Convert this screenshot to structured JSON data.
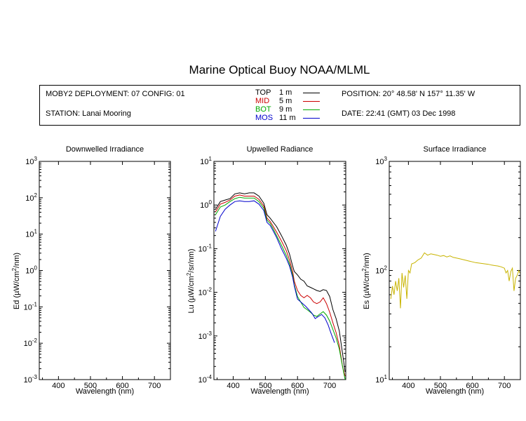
{
  "title": "Marine Optical Buoy NOAA/MLML",
  "info": {
    "deployment": "MOBY2 DEPLOYMENT: 07 CONFIG: 01",
    "station": "STATION: Lanai Mooring",
    "position": "POSITION: 20° 48.58' N   157° 11.35' W",
    "date": "DATE: 22:41 (GMT) 03 Dec 1998"
  },
  "legend": [
    {
      "name": "TOP",
      "depth": "1  m",
      "color": "#000000"
    },
    {
      "name": "MID",
      "depth": "5  m",
      "color": "#cc0000"
    },
    {
      "name": "BOT",
      "depth": "9  m",
      "color": "#00aa00"
    },
    {
      "name": "MOS",
      "depth": "11  m",
      "color": "#0000cc"
    }
  ],
  "chart_data": [
    {
      "type": "line",
      "title": "Downwelled Irradiance",
      "xlabel": "Wavelength (nm)",
      "ylabel_main": "Ed  (µW/cm",
      "ylabel_sup": "2",
      "ylabel_end": "/nm)",
      "xlim": [
        340,
        750
      ],
      "ylim_log10": [
        -3,
        3
      ],
      "log_y": true,
      "x_ticks": [
        "400",
        "500",
        "600",
        "700"
      ],
      "y_ticks": [
        {
          "base": "10",
          "exp": "-3"
        },
        {
          "base": "10",
          "exp": "-2"
        },
        {
          "base": "10",
          "exp": "-1"
        },
        {
          "base": "10",
          "exp": "0"
        },
        {
          "base": "10",
          "exp": "1"
        },
        {
          "base": "10",
          "exp": "2"
        },
        {
          "base": "10",
          "exp": "3"
        }
      ],
      "series": []
    },
    {
      "type": "line",
      "title": "Upwelled Radiance",
      "xlabel": "Wavelength (nm)",
      "ylabel_main": "Lu  (µW/cm",
      "ylabel_sup": "2",
      "ylabel_end": "/sr/nm)",
      "xlim": [
        340,
        750
      ],
      "ylim_log10": [
        -4,
        1
      ],
      "log_y": true,
      "x_ticks": [
        "400",
        "500",
        "600",
        "700"
      ],
      "y_ticks": [
        {
          "base": "10",
          "exp": "-4"
        },
        {
          "base": "10",
          "exp": "-3"
        },
        {
          "base": "10",
          "exp": "-2"
        },
        {
          "base": "10",
          "exp": "-1"
        },
        {
          "base": "10",
          "exp": "0"
        },
        {
          "base": "10",
          "exp": "1"
        }
      ],
      "series": [
        {
          "color": "#000000",
          "x": [
            345,
            360,
            375,
            390,
            405,
            420,
            435,
            450,
            465,
            480,
            495,
            505,
            515,
            525,
            535,
            550,
            565,
            575,
            585,
            590,
            600,
            610,
            620,
            630,
            640,
            650,
            660,
            670,
            680,
            690,
            700,
            710,
            720,
            730,
            740,
            748
          ],
          "y": [
            0.8,
            1.2,
            1.3,
            1.4,
            1.8,
            1.9,
            1.8,
            1.9,
            1.9,
            1.6,
            1.1,
            0.6,
            0.5,
            0.4,
            0.32,
            0.2,
            0.12,
            0.075,
            0.04,
            0.03,
            0.025,
            0.02,
            0.018,
            0.014,
            0.013,
            0.012,
            0.011,
            0.0105,
            0.0115,
            0.011,
            0.008,
            0.004,
            0.0025,
            0.0013,
            0.0004,
            0.00015
          ]
        },
        {
          "color": "#cc0000",
          "x": [
            345,
            360,
            375,
            390,
            405,
            420,
            435,
            450,
            465,
            480,
            495,
            505,
            515,
            525,
            535,
            550,
            565,
            575,
            585,
            590,
            600,
            610,
            620,
            630,
            640,
            650,
            660,
            670,
            680,
            690,
            700,
            710,
            720,
            730,
            740,
            748
          ],
          "y": [
            0.7,
            1.05,
            1.15,
            1.3,
            1.6,
            1.7,
            1.6,
            1.6,
            1.6,
            1.35,
            0.95,
            0.5,
            0.42,
            0.32,
            0.24,
            0.15,
            0.09,
            0.055,
            0.03,
            0.018,
            0.011,
            0.0085,
            0.0075,
            0.0085,
            0.0075,
            0.006,
            0.0055,
            0.006,
            0.0075,
            0.0055,
            0.0035,
            0.002,
            0.0012,
            0.0006,
            0.0002,
            0.00012
          ]
        },
        {
          "color": "#00aa00",
          "x": [
            345,
            360,
            375,
            390,
            405,
            420,
            435,
            450,
            465,
            480,
            495,
            505,
            515,
            525,
            535,
            550,
            565,
            575,
            585,
            590,
            600,
            610,
            620,
            630,
            640,
            650,
            660,
            670,
            680,
            690,
            700,
            710,
            720,
            730,
            740,
            748
          ],
          "y": [
            0.6,
            0.9,
            1.0,
            1.2,
            1.4,
            1.5,
            1.45,
            1.45,
            1.45,
            1.2,
            0.85,
            0.45,
            0.38,
            0.28,
            0.2,
            0.12,
            0.07,
            0.045,
            0.025,
            0.015,
            0.008,
            0.006,
            0.0045,
            0.004,
            0.0035,
            0.003,
            0.0028,
            0.0032,
            0.0036,
            0.003,
            0.0022,
            0.0014,
            0.0009,
            0.0005,
            0.0002,
            0.0001
          ]
        },
        {
          "color": "#0000cc",
          "x": [
            345,
            360,
            375,
            390,
            405,
            420,
            435,
            450,
            465,
            480,
            495,
            505,
            515,
            525,
            535,
            550,
            565,
            575,
            585,
            590,
            600,
            625,
            635,
            645,
            655,
            665,
            675,
            685,
            695,
            705,
            715
          ],
          "y": [
            0.25,
            0.55,
            0.8,
            1.0,
            1.2,
            1.25,
            1.2,
            1.2,
            1.25,
            1.05,
            0.75,
            0.4,
            0.34,
            0.25,
            0.18,
            0.1,
            0.06,
            0.04,
            0.022,
            0.014,
            0.007,
            0.0048,
            0.004,
            0.0033,
            0.0025,
            0.0028,
            0.0031,
            0.0026,
            0.0018,
            0.0011,
            0.0007
          ]
        }
      ]
    },
    {
      "type": "line",
      "title": "Surface Irradiance",
      "xlabel": "Wavelength (nm)",
      "ylabel_main": "Es  (µW/cm",
      "ylabel_sup": "2",
      "ylabel_end": "/nm)",
      "xlim": [
        340,
        750
      ],
      "ylim_log10": [
        1,
        3
      ],
      "log_y": true,
      "x_ticks": [
        "400",
        "500",
        "600",
        "700"
      ],
      "y_ticks": [
        {
          "base": "10",
          "exp": "1"
        },
        {
          "base": "10",
          "exp": "2"
        },
        {
          "base": "10",
          "exp": "3"
        }
      ],
      "series": [
        {
          "color": "#c8b400",
          "x": [
            345,
            350,
            355,
            360,
            365,
            370,
            375,
            380,
            385,
            390,
            395,
            400,
            405,
            410,
            420,
            430,
            440,
            450,
            460,
            470,
            480,
            490,
            500,
            510,
            520,
            530,
            540,
            550,
            560,
            570,
            580,
            590,
            600,
            610,
            620,
            630,
            640,
            650,
            660,
            670,
            680,
            690,
            700,
            705,
            710,
            715,
            720,
            725,
            730,
            735,
            740,
            745,
            748
          ],
          "y": [
            55,
            72,
            60,
            80,
            65,
            85,
            45,
            95,
            70,
            90,
            55,
            100,
            95,
            115,
            118,
            125,
            130,
            145,
            138,
            142,
            140,
            138,
            135,
            137,
            133,
            136,
            132,
            130,
            128,
            126,
            124,
            122,
            120,
            118,
            117,
            116,
            115,
            114,
            112,
            111,
            110,
            108,
            105,
            95,
            100,
            80,
            98,
            105,
            65,
            85,
            90,
            100,
            95
          ]
        }
      ]
    }
  ]
}
